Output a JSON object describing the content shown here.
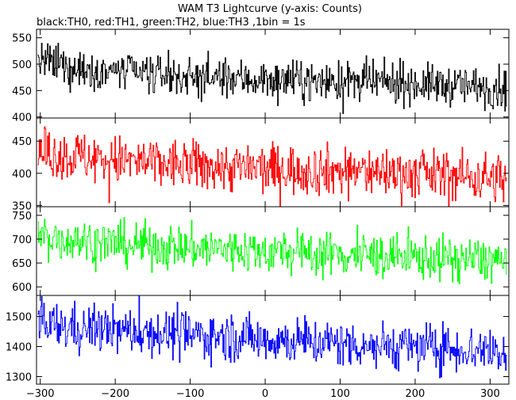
{
  "chart_data": {
    "type": "line",
    "title": "WAM T3 Lightcurve (y-axis: Counts)",
    "subtitle": "black:TH0, red:TH1, green:TH2, blue:TH3 ,1bin = 1s",
    "xlim": [
      -305,
      325
    ],
    "xticks": [
      -300,
      -200,
      -100,
      0,
      100,
      200,
      300
    ],
    "panels": [
      {
        "series_name": "TH0",
        "color": "#000000",
        "ylim": [
          398,
          566
        ],
        "yticks": [
          400,
          450,
          500,
          550
        ],
        "trend": [
          [
            -300,
            505
          ],
          [
            -250,
            492
          ],
          [
            -200,
            486
          ],
          [
            -100,
            476
          ],
          [
            0,
            470
          ],
          [
            100,
            467
          ],
          [
            200,
            463
          ],
          [
            320,
            455
          ]
        ],
        "noise_amplitude": 20
      },
      {
        "series_name": "TH1",
        "color": "#ff0000",
        "ylim": [
          348,
          486
        ],
        "yticks": [
          350,
          400,
          450
        ],
        "trend": [
          [
            -300,
            432
          ],
          [
            -200,
            420
          ],
          [
            -100,
            412
          ],
          [
            0,
            407
          ],
          [
            100,
            404
          ],
          [
            200,
            400
          ],
          [
            320,
            392
          ]
        ],
        "noise_amplitude": 21
      },
      {
        "series_name": "TH2",
        "color": "#00ff00",
        "ylim": [
          582,
          768
        ],
        "yticks": [
          600,
          650,
          700,
          750
        ],
        "trend": [
          [
            -300,
            705
          ],
          [
            -200,
            690
          ],
          [
            -100,
            682
          ],
          [
            0,
            675
          ],
          [
            100,
            668
          ],
          [
            200,
            662
          ],
          [
            320,
            655
          ]
        ],
        "noise_amplitude": 25
      },
      {
        "series_name": "TH3",
        "color": "#0000ff",
        "ylim": [
          1275,
          1570
        ],
        "yticks": [
          1300,
          1400,
          1500
        ],
        "trend": [
          [
            -300,
            1470
          ],
          [
            -200,
            1455
          ],
          [
            -100,
            1440
          ],
          [
            0,
            1425
          ],
          [
            100,
            1410
          ],
          [
            200,
            1400
          ],
          [
            320,
            1385
          ]
        ],
        "noise_amplitude": 42
      }
    ]
  }
}
